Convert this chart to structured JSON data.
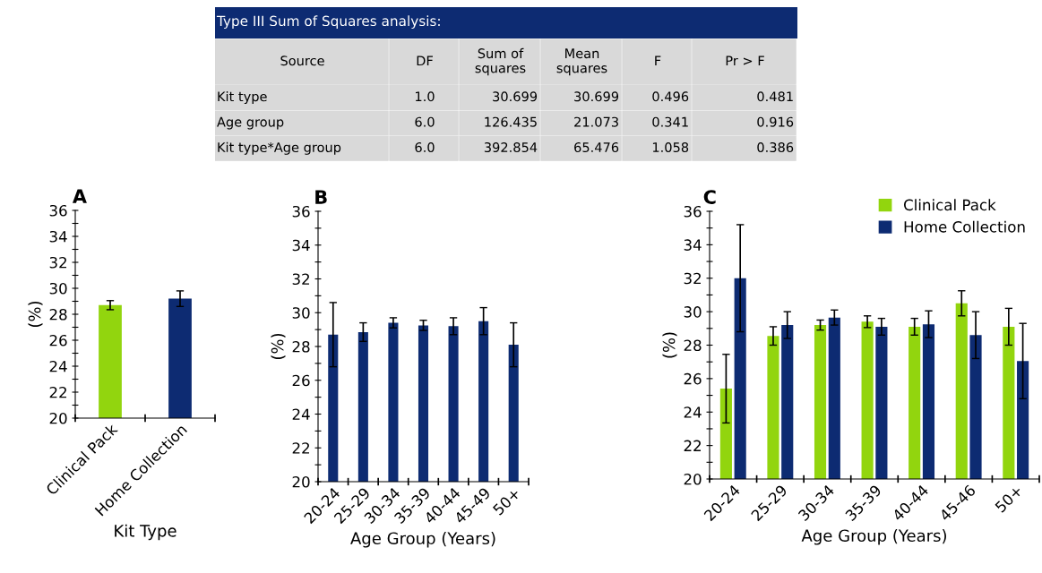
{
  "chart_data": [
    {
      "type": "other",
      "title": "Type III Sum of Squares analysis:",
      "categories": [
        "Source",
        "DF",
        "Sum of\nsquares",
        "Mean\nsquares",
        "F",
        "Pr > F"
      ],
      "y_categories": [
        "Kit type",
        "Age group",
        "Kit type*Age group"
      ],
      "cell_labels": [
        [
          "1.0",
          "30.699",
          "30.699",
          "0.496",
          "0.481"
        ],
        [
          "6.0",
          "126.435",
          "21.073",
          "0.341",
          "0.916"
        ],
        [
          "6.0",
          "392.854",
          "65.476",
          "1.058",
          "0.386"
        ]
      ]
    },
    {
      "type": "bar",
      "title": "A",
      "xlabel": "Kit Type",
      "ylabel": "(%)",
      "categories": [
        "Clinical Pack",
        "Home Collection"
      ],
      "values": [
        28.7,
        29.2
      ],
      "colors": [
        "#92d50e",
        "#0d2b72"
      ],
      "errors": [
        0.35,
        0.6
      ],
      "ylim": [
        20,
        36
      ],
      "yticks": [
        20,
        {
          "value": 21,
          "label": null
        },
        22,
        {
          "value": 23,
          "label": null
        },
        24,
        {
          "value": 25,
          "label": null
        },
        26,
        {
          "value": 27,
          "label": null
        },
        28,
        {
          "value": 29,
          "label": null
        },
        30,
        {
          "value": 31,
          "label": null
        },
        32,
        {
          "value": 33,
          "label": null
        },
        34,
        {
          "value": 35,
          "label": null
        },
        36
      ],
      "grid": false,
      "legend": false
    },
    {
      "type": "bar",
      "title": "B",
      "xlabel": "Age Group (Years)",
      "ylabel": "(%)",
      "categories": [
        "20-24",
        "25-29",
        "30-34",
        "35-39",
        "40-44",
        "45-49",
        "50+"
      ],
      "series": [
        {
          "color": "#0d2b72",
          "values": [
            28.7,
            28.85,
            29.4,
            29.25,
            29.2,
            29.5,
            28.1
          ],
          "errors": [
            1.9,
            0.55,
            0.3,
            0.3,
            0.5,
            0.8,
            1.3
          ]
        }
      ],
      "ylim": [
        20,
        36
      ],
      "yticks": [
        20,
        {
          "value": 21,
          "label": null
        },
        22,
        {
          "value": 23,
          "label": null
        },
        24,
        {
          "value": 25,
          "label": null
        },
        26,
        {
          "value": 27,
          "label": null
        },
        28,
        {
          "value": 29,
          "label": null
        },
        30,
        {
          "value": 31,
          "label": null
        },
        32,
        {
          "value": 33,
          "label": null
        },
        34,
        {
          "value": 35,
          "label": null
        },
        36
      ],
      "grid": false,
      "legend": false
    },
    {
      "type": "bar",
      "title": "C",
      "xlabel": "Age Group (Years)",
      "ylabel": "(%)",
      "categories": [
        "20-24",
        "25-29",
        "30-34",
        "35-39",
        "40-44",
        "45-46",
        "50+"
      ],
      "series": [
        {
          "name": "Clinical Pack",
          "color": "#92d50e",
          "values": [
            25.4,
            28.55,
            29.2,
            29.4,
            29.1,
            30.5,
            29.1
          ],
          "errors": [
            2.05,
            0.55,
            0.3,
            0.35,
            0.5,
            0.75,
            1.1
          ]
        },
        {
          "name": "Home Collection",
          "color": "#0d2b72",
          "values": [
            32.0,
            29.2,
            29.65,
            29.1,
            29.25,
            28.6,
            27.05
          ],
          "errors": [
            3.2,
            0.8,
            0.45,
            0.5,
            0.8,
            1.4,
            2.25
          ]
        }
      ],
      "ylim": [
        20,
        36
      ],
      "yticks": [
        20,
        {
          "value": 21,
          "label": null
        },
        22,
        {
          "value": 23,
          "label": null
        },
        24,
        {
          "value": 25,
          "label": null
        },
        26,
        {
          "value": 27,
          "label": null
        },
        28,
        {
          "value": 29,
          "label": null
        },
        30,
        {
          "value": 31,
          "label": null
        },
        32,
        {
          "value": 33,
          "label": null
        },
        34,
        {
          "value": 35,
          "label": null
        },
        36
      ],
      "grid": false,
      "legend": "top right"
    }
  ]
}
